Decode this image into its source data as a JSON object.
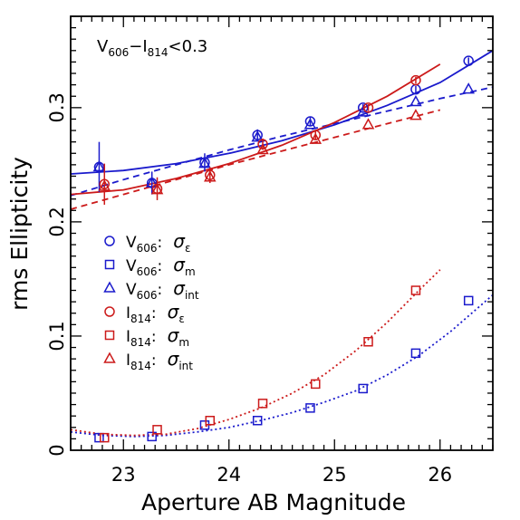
{
  "chart_data": {
    "type": "scatter",
    "title": "",
    "xlabel": "Aperture AB Magnitude",
    "ylabel": "rms Ellipticity",
    "xlim": [
      22.5,
      26.5
    ],
    "ylim": [
      0.0,
      0.38
    ],
    "x_ticks": [
      "23",
      "24",
      "25",
      "26"
    ],
    "y_ticks": [
      "0",
      "0.1",
      "0.2",
      "0.3"
    ],
    "annotation": {
      "a": "V",
      "a_sub": "606",
      "mid": "−I",
      "b_sub": "814",
      "c": "<0.3"
    },
    "grid": false,
    "legend_position": "left-middle",
    "colors": {
      "V606": "#1a1acc",
      "I814": "#cc1a1a"
    },
    "series": [
      {
        "band": "V",
        "band_sub": "606",
        "sym": "σ",
        "sym_sub": "ε",
        "marker": "circle",
        "color": "#1a1acc",
        "points": [
          {
            "x": 22.77,
            "y": 0.248,
            "err": 0.022
          },
          {
            "x": 23.27,
            "y": 0.234,
            "err": 0.01
          },
          {
            "x": 23.77,
            "y": 0.252,
            "err": 0.008
          },
          {
            "x": 24.27,
            "y": 0.276,
            "err": 0.005
          },
          {
            "x": 24.77,
            "y": 0.288,
            "err": 0.004
          },
          {
            "x": 25.27,
            "y": 0.3,
            "err": 0.003
          },
          {
            "x": 25.77,
            "y": 0.316,
            "err": 0.003
          },
          {
            "x": 26.27,
            "y": 0.341,
            "err": 0.003
          }
        ]
      },
      {
        "band": "V",
        "band_sub": "606",
        "sym": "σ",
        "sym_sub": "m",
        "marker": "square",
        "color": "#1a1acc",
        "points": [
          {
            "x": 22.77,
            "y": 0.011,
            "err": 0
          },
          {
            "x": 23.27,
            "y": 0.012,
            "err": 0
          },
          {
            "x": 23.77,
            "y": 0.022,
            "err": 0
          },
          {
            "x": 24.27,
            "y": 0.026,
            "err": 0
          },
          {
            "x": 24.77,
            "y": 0.037,
            "err": 0
          },
          {
            "x": 25.27,
            "y": 0.054,
            "err": 0
          },
          {
            "x": 25.77,
            "y": 0.085,
            "err": 0
          },
          {
            "x": 26.27,
            "y": 0.131,
            "err": 0
          }
        ]
      },
      {
        "band": "V",
        "band_sub": "606",
        "sym": "σ",
        "sym_sub": "int",
        "marker": "triangle",
        "color": "#1a1acc",
        "points": [
          {
            "x": 22.77,
            "y": 0.248,
            "err": 0
          },
          {
            "x": 23.27,
            "y": 0.234,
            "err": 0
          },
          {
            "x": 23.77,
            "y": 0.251,
            "err": 0
          },
          {
            "x": 24.27,
            "y": 0.274,
            "err": 0
          },
          {
            "x": 24.77,
            "y": 0.285,
            "err": 0
          },
          {
            "x": 25.27,
            "y": 0.296,
            "err": 0
          },
          {
            "x": 25.77,
            "y": 0.305,
            "err": 0
          },
          {
            "x": 26.27,
            "y": 0.316,
            "err": 0
          }
        ]
      },
      {
        "band": "I",
        "band_sub": "814",
        "sym": "σ",
        "sym_sub": "ε",
        "marker": "circle",
        "color": "#cc1a1a",
        "points": [
          {
            "x": 22.82,
            "y": 0.233,
            "err": 0.018
          },
          {
            "x": 23.32,
            "y": 0.229,
            "err": 0.01
          },
          {
            "x": 23.82,
            "y": 0.241,
            "err": 0.007
          },
          {
            "x": 24.32,
            "y": 0.268,
            "err": 0.005
          },
          {
            "x": 24.82,
            "y": 0.276,
            "err": 0.004
          },
          {
            "x": 25.32,
            "y": 0.3,
            "err": 0.003
          },
          {
            "x": 25.77,
            "y": 0.324,
            "err": 0.003
          }
        ]
      },
      {
        "band": "I",
        "band_sub": "814",
        "sym": "σ",
        "sym_sub": "m",
        "marker": "square",
        "color": "#cc1a1a",
        "points": [
          {
            "x": 22.82,
            "y": 0.011,
            "err": 0
          },
          {
            "x": 23.32,
            "y": 0.018,
            "err": 0
          },
          {
            "x": 23.82,
            "y": 0.026,
            "err": 0
          },
          {
            "x": 24.32,
            "y": 0.041,
            "err": 0
          },
          {
            "x": 24.82,
            "y": 0.058,
            "err": 0
          },
          {
            "x": 25.32,
            "y": 0.095,
            "err": 0
          },
          {
            "x": 25.77,
            "y": 0.14,
            "err": 0
          }
        ]
      },
      {
        "band": "I",
        "band_sub": "814",
        "sym": "σ",
        "sym_sub": "int",
        "marker": "triangle",
        "color": "#cc1a1a",
        "points": [
          {
            "x": 22.82,
            "y": 0.231,
            "err": 0
          },
          {
            "x": 23.32,
            "y": 0.228,
            "err": 0
          },
          {
            "x": 23.82,
            "y": 0.239,
            "err": 0
          },
          {
            "x": 24.32,
            "y": 0.263,
            "err": 0
          },
          {
            "x": 24.82,
            "y": 0.272,
            "err": 0
          },
          {
            "x": 25.32,
            "y": 0.285,
            "err": 0
          },
          {
            "x": 25.77,
            "y": 0.293,
            "err": 0
          }
        ]
      }
    ],
    "fit_curves": [
      {
        "color": "#1a1acc",
        "style": "solid",
        "x": [
          22.5,
          23.0,
          23.5,
          24.0,
          24.5,
          25.0,
          25.5,
          26.0,
          26.5
        ],
        "y": [
          0.242,
          0.245,
          0.251,
          0.26,
          0.271,
          0.285,
          0.302,
          0.322,
          0.35
        ]
      },
      {
        "color": "#1a1acc",
        "style": "dashed",
        "x": [
          22.5,
          23.0,
          23.5,
          24.0,
          24.5,
          25.0,
          25.5,
          26.0,
          26.5
        ],
        "y": [
          0.223,
          0.237,
          0.25,
          0.263,
          0.275,
          0.286,
          0.297,
          0.308,
          0.318
        ]
      },
      {
        "color": "#cc1a1a",
        "style": "solid",
        "x": [
          22.5,
          23.0,
          23.5,
          24.0,
          24.5,
          25.0,
          25.5,
          26.0
        ],
        "y": [
          0.224,
          0.228,
          0.238,
          0.251,
          0.267,
          0.287,
          0.31,
          0.338
        ]
      },
      {
        "color": "#cc1a1a",
        "style": "dashed",
        "x": [
          22.5,
          23.0,
          23.5,
          24.0,
          24.5,
          25.0,
          25.5,
          26.0
        ],
        "y": [
          0.211,
          0.224,
          0.237,
          0.25,
          0.262,
          0.274,
          0.286,
          0.298
        ]
      },
      {
        "color": "#1a1acc",
        "style": "dotted",
        "x": [
          22.5,
          22.8,
          23.1,
          23.4,
          23.7,
          24.0,
          24.3,
          24.6,
          24.9,
          25.2,
          25.5,
          25.8,
          26.1,
          26.5
        ],
        "y": [
          0.016,
          0.013,
          0.012,
          0.013,
          0.016,
          0.02,
          0.026,
          0.033,
          0.042,
          0.052,
          0.066,
          0.083,
          0.104,
          0.136
        ]
      },
      {
        "color": "#cc1a1a",
        "style": "dotted",
        "x": [
          22.5,
          22.8,
          23.1,
          23.4,
          23.7,
          24.0,
          24.3,
          24.6,
          24.9,
          25.2,
          25.5,
          25.8,
          26.0
        ],
        "y": [
          0.018,
          0.014,
          0.013,
          0.014,
          0.019,
          0.027,
          0.037,
          0.05,
          0.066,
          0.087,
          0.112,
          0.14,
          0.158
        ]
      }
    ]
  }
}
